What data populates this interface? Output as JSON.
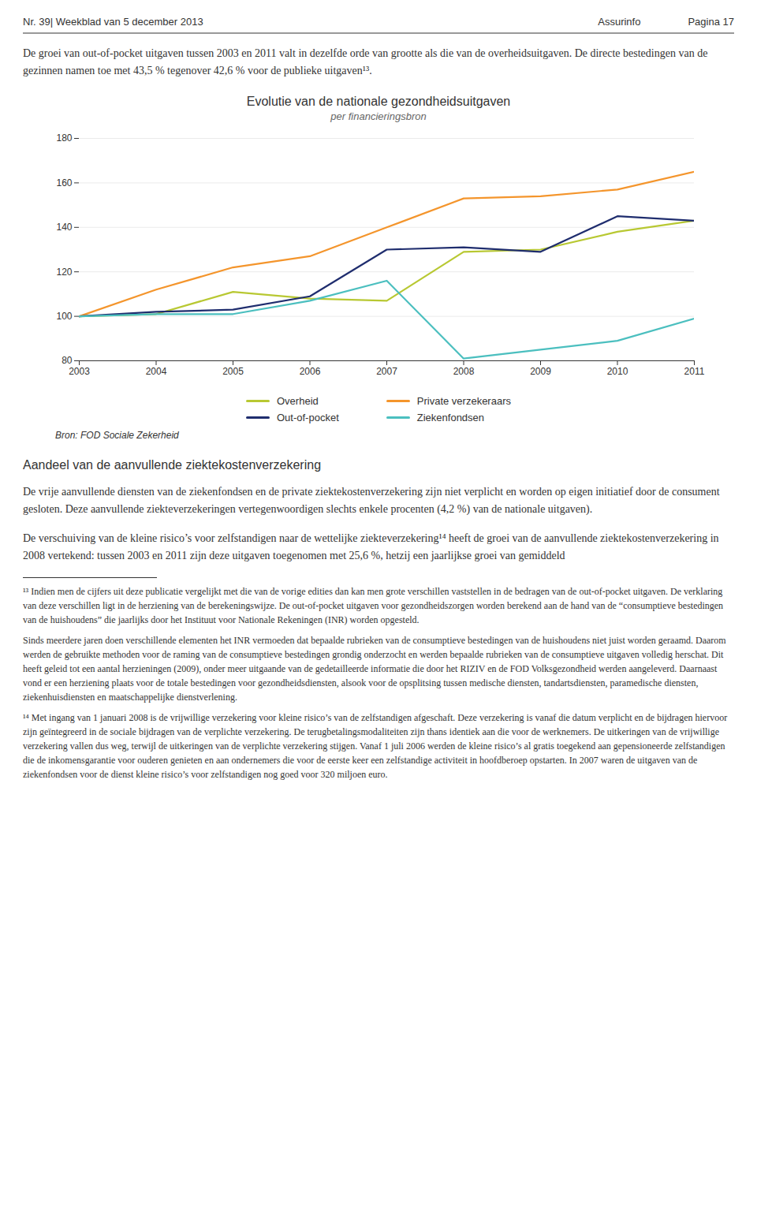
{
  "chart_data": {
    "type": "line",
    "title": "Evolutie van de nationale gezondheidsuitgaven",
    "subtitle": "per financieringsbron",
    "x": [
      2003,
      2004,
      2005,
      2006,
      2007,
      2008,
      2009,
      2010,
      2011
    ],
    "series": [
      {
        "name": "Overheid",
        "color": "#b8c832",
        "values": [
          100,
          101,
          111,
          108,
          107,
          129,
          130,
          138,
          143
        ]
      },
      {
        "name": "Private verzekeraars",
        "color": "#f4952c",
        "values": [
          100,
          112,
          122,
          127,
          140,
          153,
          154,
          157,
          165
        ]
      },
      {
        "name": "Out-of-pocket",
        "color": "#1f2d6e",
        "values": [
          100,
          102,
          103,
          109,
          130,
          131,
          129,
          145,
          143
        ]
      },
      {
        "name": "Ziekenfondsen",
        "color": "#4bbfbf",
        "values": [
          100,
          101,
          101,
          107,
          116,
          81,
          85,
          89,
          99
        ]
      }
    ],
    "xlim": [
      2003,
      2011
    ],
    "xticks": [
      2003,
      2004,
      2005,
      2006,
      2007,
      2008,
      2009,
      2010,
      2011
    ],
    "ylim": [
      80,
      180
    ],
    "yticks": [
      80,
      100,
      120,
      140,
      160,
      180
    ],
    "grid": true,
    "legend": "bottom",
    "annotations": [
      "Bron: FOD Sociale Zekerheid"
    ]
  },
  "page": {
    "header": [
      "Nr. 39| Weekblad van 5 december 2013",
      "Assurinfo",
      "Pagina 17"
    ],
    "intro": [
      "De groei van out-of-pocket uitgaven tussen 2003 en 2011 valt in dezelfde orde van grootte als die van de overheidsuitgaven. De directe bestedingen van de gezinnen namen toe met 43,5 % tegenover 42,6 % voor de publieke uitgaven¹³."
    ],
    "section_heading": "Aandeel van de aanvullende ziektekostenverzekering",
    "section_text": [
      "De vrije aanvullende diensten van de ziekenfondsen en de private ziektekostenverzekering zijn niet verplicht en worden op eigen initiatief door de consument gesloten. Deze aanvullende ziekteverzekeringen vertegenwoordigen slechts enkele procenten (4,2 %) van de nationale uitgaven).",
      "De verschuiving van de kleine risico’s voor zelfstandigen naar de wettelijke ziekteverzekering¹⁴ heeft de groei van de aanvullende ziektekostenverzekering in 2008 vertekend: tussen 2003 en 2011 zijn deze uitgaven toegenomen met 25,6 %, hetzij een jaarlijkse groei van gemiddeld"
    ],
    "footnotes": [
      "¹³ Indien men de cijfers uit deze publicatie vergelijkt met die van de vorige edities dan kan men grote verschillen vaststellen in de bedragen van de out-of-pocket uitgaven. De verklaring van deze verschillen ligt in de herziening van de berekeningswijze. De out-of-pocket uitgaven voor gezondheidszorgen worden berekend aan de hand van de “consumptieve bestedingen van de huishoudens” die jaarlijks door het Instituut voor Nationale Rekeningen (INR) worden opgesteld.",
      "Sinds meerdere jaren doen verschillende elementen het INR vermoeden dat bepaalde rubrieken van de consumptieve bestedingen van de huishoudens niet juist worden geraamd. Daarom werden de gebruikte methoden voor de raming van de consumptieve bestedingen grondig onderzocht en werden bepaalde rubrieken van de consumptieve uitgaven volledig herschat. Dit heeft geleid tot een aantal herzieningen (2009), onder meer uitgaande van de gedetailleerde informatie die door het RIZIV en de FOD Volksgezondheid werden aangeleverd. Daarnaast vond er een herziening plaats voor de totale bestedingen voor gezondheidsdiensten, alsook voor de opsplitsing tussen medische diensten, tandartsdiensten, paramedische diensten, ziekenhuisdiensten en maatschappelijke dienstverlening.",
      "¹⁴ Met ingang van 1 januari 2008 is de vrijwillige verzekering voor kleine risico’s van de zelfstandigen afgeschaft. Deze verzekering is vanaf die datum verplicht en de bijdragen hiervoor zijn geïntegreerd in de sociale bijdragen van de verplichte verzekering. De terugbetalingsmodaliteiten zijn thans identiek aan die voor de werknemers. De uitkeringen van de vrijwillige verzekering vallen dus weg, terwijl de uitkeringen van de verplichte verzekering stijgen. Vanaf 1 juli 2006 werden de kleine risico’s al gratis toegekend aan gepensioneerde zelfstandigen die de inkomensgarantie voor ouderen genieten en aan ondernemers die voor de eerste keer een zelfstandige activiteit in hoofdberoep opstarten. In 2007 waren de uitgaven van de ziekenfondsen voor de dienst kleine risico’s voor zelfstandigen nog goed voor 320 miljoen euro."
    ]
  }
}
